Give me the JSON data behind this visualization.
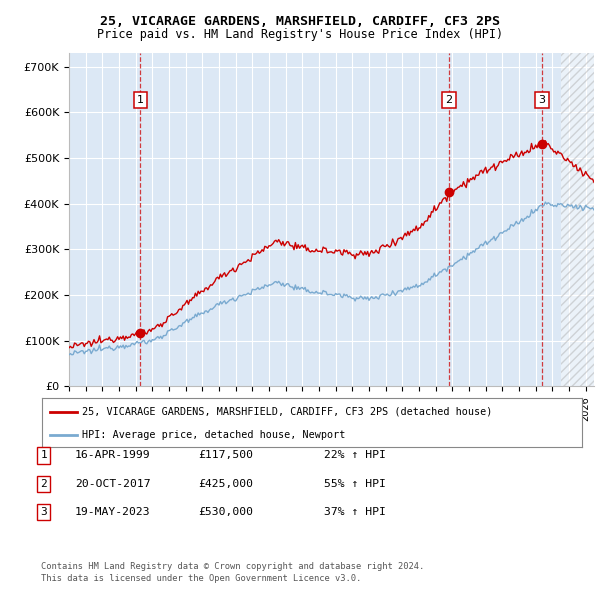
{
  "title1": "25, VICARAGE GARDENS, MARSHFIELD, CARDIFF, CF3 2PS",
  "title2": "Price paid vs. HM Land Registry's House Price Index (HPI)",
  "ytick_labels": [
    "£0",
    "£100K",
    "£200K",
    "£300K",
    "£400K",
    "£500K",
    "£600K",
    "£700K"
  ],
  "yticks": [
    0,
    100000,
    200000,
    300000,
    400000,
    500000,
    600000,
    700000
  ],
  "ylim_min": 0,
  "ylim_max": 730000,
  "xlim_start": 1995.0,
  "xlim_end": 2026.5,
  "legend_line1": "25, VICARAGE GARDENS, MARSHFIELD, CARDIFF, CF3 2PS (detached house)",
  "legend_line2": "HPI: Average price, detached house, Newport",
  "sale1_date": "16-APR-1999",
  "sale1_price": "£117,500",
  "sale1_pct": "22% ↑ HPI",
  "sale2_date": "20-OCT-2017",
  "sale2_price": "£425,000",
  "sale2_pct": "55% ↑ HPI",
  "sale3_date": "19-MAY-2023",
  "sale3_price": "£530,000",
  "sale3_pct": "37% ↑ HPI",
  "footer1": "Contains HM Land Registry data © Crown copyright and database right 2024.",
  "footer2": "This data is licensed under the Open Government Licence v3.0.",
  "sale1_x": 1999.29,
  "sale1_y": 117500,
  "sale2_x": 2017.8,
  "sale2_y": 425000,
  "sale3_x": 2023.38,
  "sale3_y": 530000,
  "hatch_start": 2024.5,
  "background_color": "#dce8f5",
  "grid_color": "#ffffff",
  "red_line_color": "#cc0000",
  "blue_line_color": "#7aaad0"
}
